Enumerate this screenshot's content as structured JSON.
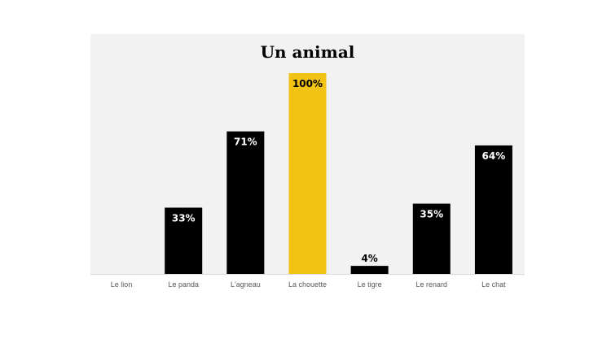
{
  "chart_data": {
    "type": "bar",
    "title": "Un animal",
    "categories": [
      "Le lion",
      "Le panda",
      "L'agneau",
      "La chouette",
      "Le tigre",
      "Le renard",
      "Le chat"
    ],
    "values": [
      0,
      33,
      71,
      100,
      4,
      35,
      64
    ],
    "labels": [
      "",
      "33%",
      "71%",
      "100%",
      "4%",
      "35%",
      "64%"
    ],
    "ylim": [
      0,
      100
    ],
    "grid": false,
    "legend": "none",
    "highlight_category": "La chouette",
    "colors": {
      "bar": "#000000",
      "highlight": "#f2c314",
      "panel_background": "#f2f2f2",
      "label_on_dark": "#ffffff",
      "label_on_light": "#000000",
      "tick_label": "#595959"
    }
  }
}
